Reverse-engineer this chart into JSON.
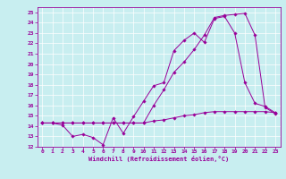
{
  "xlabel": "Windchill (Refroidissement éolien,°C)",
  "background_color": "#c8eef0",
  "line_color": "#990099",
  "xlim": [
    -0.5,
    23.5
  ],
  "ylim": [
    12,
    25.5
  ],
  "yticks": [
    12,
    13,
    14,
    15,
    16,
    17,
    18,
    19,
    20,
    21,
    22,
    23,
    24,
    25
  ],
  "xticks": [
    0,
    1,
    2,
    3,
    4,
    5,
    6,
    7,
    8,
    9,
    10,
    11,
    12,
    13,
    14,
    15,
    16,
    17,
    18,
    19,
    20,
    21,
    22,
    23
  ],
  "series1_x": [
    0,
    1,
    2,
    3,
    4,
    5,
    6,
    7,
    8,
    9,
    10,
    11,
    12,
    13,
    14,
    15,
    16,
    17,
    18,
    19,
    20,
    21,
    22,
    23
  ],
  "series1_y": [
    14.3,
    14.3,
    14.1,
    13.0,
    13.2,
    12.9,
    12.2,
    14.8,
    13.3,
    14.9,
    16.4,
    17.9,
    18.2,
    21.3,
    22.3,
    23.0,
    22.1,
    24.4,
    24.6,
    23.0,
    18.2,
    16.2,
    15.9,
    15.3
  ],
  "series2_x": [
    0,
    1,
    2,
    3,
    4,
    5,
    6,
    7,
    8,
    9,
    10,
    11,
    12,
    13,
    14,
    15,
    16,
    17,
    18,
    19,
    20,
    21,
    22,
    23
  ],
  "series2_y": [
    14.3,
    14.3,
    14.3,
    14.3,
    14.3,
    14.3,
    14.3,
    14.3,
    14.3,
    14.3,
    14.3,
    14.5,
    14.6,
    14.8,
    15.0,
    15.1,
    15.3,
    15.4,
    15.4,
    15.4,
    15.4,
    15.4,
    15.4,
    15.3
  ],
  "series3_x": [
    0,
    1,
    2,
    3,
    4,
    5,
    6,
    7,
    8,
    9,
    10,
    11,
    12,
    13,
    14,
    15,
    16,
    17,
    18,
    19,
    20,
    21,
    22,
    23
  ],
  "series3_y": [
    14.3,
    14.3,
    14.3,
    14.3,
    14.3,
    14.3,
    14.3,
    14.3,
    14.3,
    14.3,
    14.3,
    16.0,
    17.5,
    19.2,
    20.2,
    21.4,
    22.8,
    24.5,
    24.7,
    24.8,
    24.9,
    22.8,
    15.8,
    15.2
  ],
  "tick_fontsize": 4.5,
  "xlabel_fontsize": 5.0
}
